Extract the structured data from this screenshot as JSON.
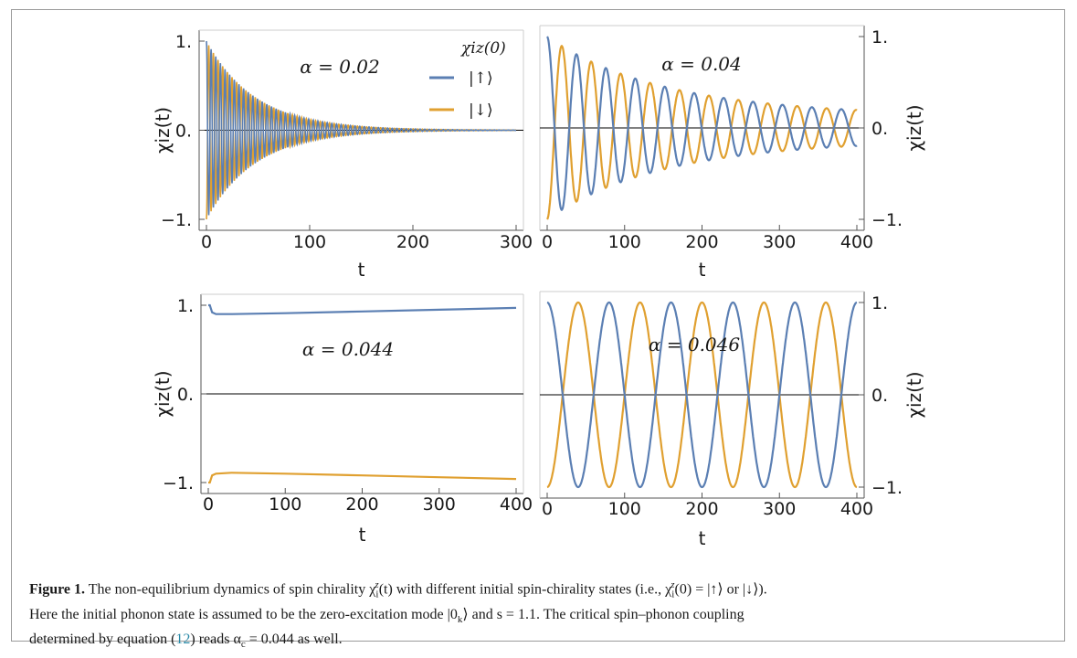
{
  "caption": {
    "label": "Figure 1.",
    "line1": "The non-equilibrium dynamics of spin chirality χ",
    "text": "The non-equilibrium dynamics of spin chirality χiz(t) with different initial spin-chirality states (i.e., χiz(0) = |↑⟩ or |↓⟩). Here the initial phonon state is assumed to be the zero-excitation mode |0k⟩ and s = 1.1. The critical spin–phonon coupling determined by equation (12) reads αc = 0.044 as well.",
    "part_a": "The non-equilibrium dynamics of spin chirality χ",
    "part_b": "(t) with different initial spin-chirality states (i.e., χ",
    "part_c": "(0) = |↑⟩ or |↓⟩).",
    "part_d": "Here the initial phonon state is assumed to be the zero-excitation mode |0",
    "part_e": "⟩ and s = 1.1. The critical spin–phonon coupling",
    "part_f": "determined by equation (",
    "eq_ref": "12",
    "part_g": ") reads α",
    "part_h": " = 0.044 as well."
  },
  "legend": {
    "title": "χiz(0)",
    "up": "|↑⟩",
    "down": "|↓⟩"
  },
  "colors": {
    "up": "#5b7fb3",
    "down": "#e0a030",
    "axis": "#555555",
    "zero": "#000000"
  },
  "chart_data": [
    {
      "type": "line",
      "panel": "top-left",
      "annotation": "α = 0.02",
      "xlabel": "t",
      "ylabel": "χiz(t)",
      "xlim": [
        0,
        300
      ],
      "ylim": [
        -1,
        1
      ],
      "xticks": [
        "0",
        "100",
        "200",
        "300"
      ],
      "yticks": [
        "-1.",
        "0.",
        "1."
      ],
      "legend": "top-right",
      "series": [
        {
          "name": "|↑⟩",
          "envelope_start": 1.0,
          "decay_rate": 0.021,
          "period": 4.5,
          "final": 0.0
        },
        {
          "name": "|↓⟩",
          "envelope_start": -1.0,
          "decay_rate": 0.021,
          "period": 4.5,
          "final": 0.0
        }
      ]
    },
    {
      "type": "line",
      "panel": "top-right",
      "annotation": "α = 0.04",
      "xlabel": "t",
      "ylabel": "χiz(t)",
      "xlim": [
        0,
        400
      ],
      "ylim": [
        -1,
        1
      ],
      "xticks": [
        "0",
        "100",
        "200",
        "300",
        "400"
      ],
      "yticks": [
        "-1.",
        "0.",
        "1."
      ],
      "series": [
        {
          "name": "|↑⟩",
          "amplitude_start": 1.0,
          "amplitude_end": 0.2,
          "period": 38,
          "peaks_t": [
            0,
            38,
            76,
            114,
            152,
            190,
            228,
            266,
            304,
            342,
            380
          ]
        },
        {
          "name": "|↓⟩",
          "amplitude_start": -1.0,
          "amplitude_end": 0.2,
          "period": 38
        }
      ]
    },
    {
      "type": "line",
      "panel": "bottom-left",
      "annotation": "α = 0.044",
      "xlabel": "t",
      "ylabel": "χiz(t)",
      "xlim": [
        0,
        400
      ],
      "ylim": [
        -1,
        1
      ],
      "xticks": [
        "0",
        "100",
        "200",
        "300",
        "400"
      ],
      "yticks": [
        "-1.",
        "0.",
        "1."
      ],
      "series": [
        {
          "name": "|↑⟩",
          "x": [
            0,
            2,
            5,
            10,
            30,
            100,
            200,
            300,
            400
          ],
          "y": [
            1.0,
            1.0,
            0.92,
            0.9,
            0.9,
            0.91,
            0.93,
            0.95,
            0.97
          ]
        },
        {
          "name": "|↓⟩",
          "x": [
            0,
            2,
            5,
            10,
            30,
            100,
            200,
            300,
            400
          ],
          "y": [
            -1.0,
            -1.0,
            -0.92,
            -0.9,
            -0.89,
            -0.9,
            -0.92,
            -0.94,
            -0.96
          ]
        }
      ]
    },
    {
      "type": "line",
      "panel": "bottom-right",
      "annotation": "α = 0.046",
      "xlabel": "t",
      "ylabel": "χiz(t)",
      "xlim": [
        0,
        400
      ],
      "ylim": [
        -1,
        1
      ],
      "xticks": [
        "0",
        "100",
        "200",
        "300",
        "400"
      ],
      "yticks": [
        "-1.",
        "0.",
        "1."
      ],
      "series": [
        {
          "name": "|↑⟩",
          "amplitude": 1.0,
          "period": 80
        },
        {
          "name": "|↓⟩",
          "amplitude": -1.0,
          "period": 80
        }
      ]
    }
  ]
}
